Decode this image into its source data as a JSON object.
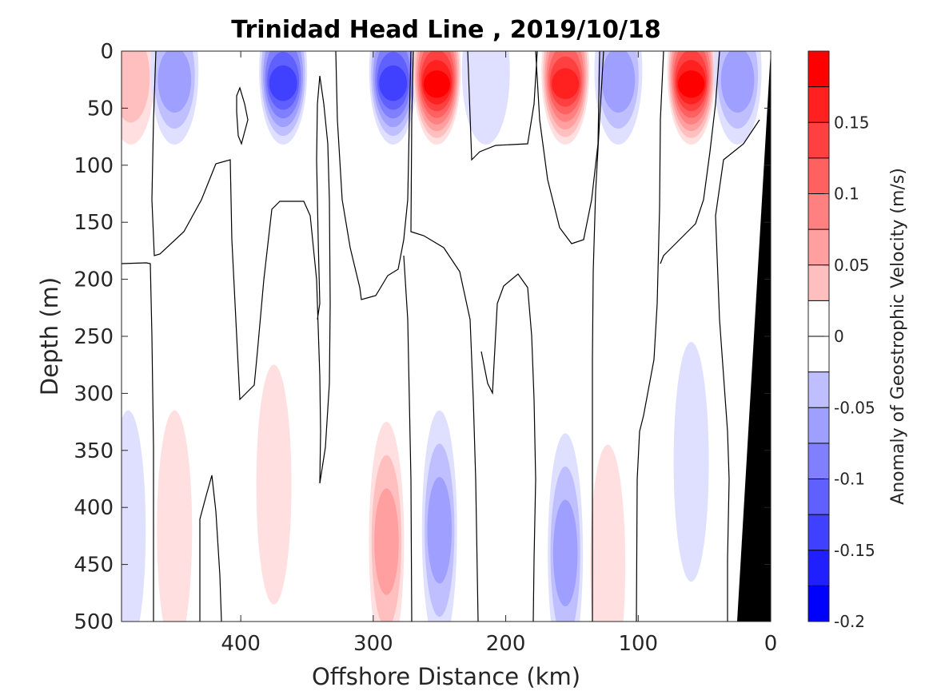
{
  "chart_data": {
    "type": "heatmap",
    "title": "Trinidad Head Line , 2019/10/18",
    "xlabel": "Offshore Distance (km)",
    "ylabel": "Depth (m)",
    "xlim": [
      490,
      0
    ],
    "ylim": [
      0,
      500
    ],
    "x_ticks": [
      "400",
      "300",
      "200",
      "100",
      "0"
    ],
    "x_tick_values": [
      400,
      300,
      200,
      100,
      0
    ],
    "y_ticks": [
      "0",
      "50",
      "100",
      "150",
      "200",
      "250",
      "300",
      "350",
      "400",
      "450",
      "500"
    ],
    "y_tick_values": [
      0,
      50,
      100,
      150,
      200,
      250,
      300,
      350,
      400,
      450,
      500
    ],
    "colorbar": {
      "label": "Anomaly of Geostrophic Velocity (m/s)",
      "range": [
        -0.2,
        0.2
      ],
      "step": 0.025,
      "ticks": [
        "0.15",
        "0.1",
        "0.05",
        "0",
        "-0.05",
        "-0.1",
        "-0.15",
        "-0.2"
      ],
      "tick_values": [
        0.15,
        0.1,
        0.05,
        0,
        -0.05,
        -0.1,
        -0.15,
        -0.2
      ]
    },
    "features": [
      {
        "kind": "eddy",
        "x": 483,
        "depth": 75,
        "value": 0.05
      },
      {
        "kind": "eddy",
        "x": 450,
        "depth": 45,
        "value": -0.075
      },
      {
        "kind": "eddy",
        "x": 368,
        "depth": 35,
        "value": -0.15
      },
      {
        "kind": "eddy",
        "x": 285,
        "depth": 30,
        "value": -0.15
      },
      {
        "kind": "eddy",
        "x": 252,
        "depth": 20,
        "value": 0.2
      },
      {
        "kind": "eddy",
        "x": 215,
        "depth": 20,
        "value": -0.025
      },
      {
        "kind": "eddy",
        "x": 155,
        "depth": 20,
        "value": 0.175
      },
      {
        "kind": "eddy",
        "x": 115,
        "depth": 35,
        "value": -0.075
      },
      {
        "kind": "eddy",
        "x": 60,
        "depth": 15,
        "value": 0.2
      },
      {
        "kind": "eddy",
        "x": 25,
        "depth": 35,
        "value": -0.075
      },
      {
        "kind": "deep",
        "x": 485,
        "depth": 420,
        "value": -0.025
      },
      {
        "kind": "deep",
        "x": 450,
        "depth": 420,
        "value": 0.025
      },
      {
        "kind": "deep",
        "x": 375,
        "depth": 380,
        "value": 0.025
      },
      {
        "kind": "deep",
        "x": 290,
        "depth": 430,
        "value": 0.075
      },
      {
        "kind": "deep",
        "x": 250,
        "depth": 420,
        "value": -0.075
      },
      {
        "kind": "deep",
        "x": 155,
        "depth": 440,
        "value": -0.075
      },
      {
        "kind": "deep",
        "x": 123,
        "depth": 450,
        "value": 0.025
      },
      {
        "kind": "deep",
        "x": 60,
        "depth": 360,
        "value": -0.025
      }
    ],
    "bathymetry": [
      [
        25,
        500
      ],
      [
        0,
        0
      ],
      [
        0,
        500
      ]
    ],
    "grid": false
  }
}
